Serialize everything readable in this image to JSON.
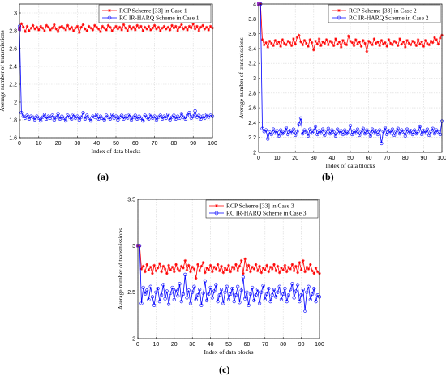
{
  "panels": [
    {
      "id": "a",
      "label": "(a)",
      "chart_data": {
        "type": "line",
        "xlabel": "Index of data blocks",
        "ylabel": "Average number of transmissions",
        "xlim": [
          0,
          100
        ],
        "ylim": [
          1.6,
          3.1
        ],
        "xticks": [
          0,
          10,
          20,
          30,
          40,
          50,
          60,
          70,
          80,
          90,
          100
        ],
        "yticks": [
          1.6,
          1.8,
          2,
          2.2,
          2.4,
          2.6,
          2.8,
          3
        ],
        "grid": true,
        "legend_position": "top-right",
        "series": [
          {
            "name": "RCP Scheme [33] in Case 1",
            "color": "#ff0000",
            "marker": "asterisk",
            "values": [
              2.82,
              2.88,
              2.84,
              2.79,
              2.85,
              2.8,
              2.83,
              2.86,
              2.82,
              2.84,
              2.81,
              2.85,
              2.83,
              2.8,
              2.86,
              2.84,
              2.81,
              2.83,
              2.87,
              2.82,
              2.79,
              2.84,
              2.85,
              2.83,
              2.81,
              2.86,
              2.82,
              2.84,
              2.8,
              2.83,
              2.85,
              2.78,
              2.84,
              2.87,
              2.82,
              2.8,
              2.85,
              2.83,
              2.81,
              2.86,
              2.84,
              2.82,
              2.79,
              2.85,
              2.83,
              2.81,
              2.86,
              2.84,
              2.8,
              2.83,
              2.85,
              2.82,
              2.84,
              2.81,
              2.87,
              2.83,
              2.8,
              2.85,
              2.82,
              2.84,
              2.81,
              2.86,
              2.83,
              2.85,
              2.8,
              2.84,
              2.82,
              2.85,
              2.81,
              2.83,
              2.86,
              2.82,
              2.84,
              2.8,
              2.83,
              2.85,
              2.82,
              2.84,
              2.81,
              2.86,
              2.83,
              2.85,
              2.8,
              2.84,
              2.87,
              2.82,
              2.84,
              2.81,
              2.85,
              2.83,
              2.88,
              2.82,
              2.85,
              2.8,
              2.84,
              2.86,
              2.82,
              2.84,
              2.81,
              2.85,
              2.83
            ]
          },
          {
            "name": "RC IR-HARQ Scheme in Case 1",
            "color": "#0000ff",
            "marker": "circle",
            "values": [
              2.85,
              1.88,
              1.84,
              1.82,
              1.85,
              1.81,
              1.84,
              1.83,
              1.8,
              1.84,
              1.82,
              1.79,
              1.83,
              1.86,
              1.81,
              1.84,
              1.82,
              1.85,
              1.8,
              1.83,
              1.87,
              1.81,
              1.84,
              1.82,
              1.79,
              1.85,
              1.83,
              1.81,
              1.86,
              1.82,
              1.84,
              1.8,
              1.83,
              1.88,
              1.81,
              1.85,
              1.82,
              1.79,
              1.84,
              1.83,
              1.86,
              1.81,
              1.84,
              1.82,
              1.8,
              1.85,
              1.83,
              1.81,
              1.86,
              1.82,
              1.84,
              1.8,
              1.83,
              1.85,
              1.81,
              1.84,
              1.82,
              1.86,
              1.8,
              1.83,
              1.85,
              1.81,
              1.84,
              1.82,
              1.79,
              1.85,
              1.83,
              1.81,
              1.86,
              1.82,
              1.84,
              1.8,
              1.83,
              1.85,
              1.81,
              1.84,
              1.82,
              1.86,
              1.8,
              1.83,
              1.85,
              1.81,
              1.84,
              1.82,
              1.87,
              1.83,
              1.81,
              1.85,
              1.88,
              1.82,
              1.84,
              1.9,
              1.83,
              1.85,
              1.81,
              1.84,
              1.82,
              1.86,
              1.83,
              1.85,
              1.84
            ]
          }
        ]
      }
    },
    {
      "id": "b",
      "label": "(b)",
      "chart_data": {
        "type": "line",
        "xlabel": "Index of data blocks",
        "ylabel": "Average number of transmissions",
        "xlim": [
          0,
          100
        ],
        "ylim": [
          2.0,
          4.0
        ],
        "xticks": [
          0,
          10,
          20,
          30,
          40,
          50,
          60,
          70,
          80,
          90,
          100
        ],
        "yticks": [
          2,
          2.2,
          2.4,
          2.6,
          2.8,
          3,
          3.2,
          3.4,
          3.6,
          3.8,
          4
        ],
        "grid": true,
        "legend_position": "top-right",
        "series": [
          {
            "name": "RCP Scheme [33] in Case 2",
            "color": "#ff0000",
            "marker": "asterisk",
            "values": [
              4.0,
              4.0,
              3.52,
              3.45,
              3.48,
              3.42,
              3.5,
              3.47,
              3.44,
              3.51,
              3.46,
              3.49,
              3.43,
              3.52,
              3.47,
              3.45,
              3.5,
              3.48,
              3.44,
              3.53,
              3.46,
              3.55,
              3.58,
              3.49,
              3.45,
              3.51,
              3.47,
              3.43,
              3.52,
              3.48,
              3.38,
              3.5,
              3.46,
              3.53,
              3.44,
              3.49,
              3.47,
              3.52,
              3.45,
              3.5,
              3.48,
              3.44,
              3.53,
              3.46,
              3.49,
              3.42,
              3.51,
              3.47,
              3.45,
              3.57,
              3.5,
              3.48,
              3.44,
              3.52,
              3.46,
              3.49,
              3.43,
              3.51,
              3.47,
              3.36,
              3.5,
              3.48,
              3.45,
              3.53,
              3.47,
              3.49,
              3.44,
              3.51,
              3.46,
              3.48,
              3.43,
              3.52,
              3.47,
              3.45,
              3.5,
              3.48,
              3.44,
              3.53,
              3.46,
              3.49,
              3.42,
              3.51,
              3.47,
              3.45,
              3.5,
              3.48,
              3.44,
              3.52,
              3.46,
              3.49,
              3.43,
              3.51,
              3.47,
              3.45,
              3.5,
              3.48,
              3.55,
              3.52,
              3.46,
              3.54,
              3.58
            ]
          },
          {
            "name": "RC IR-HARQ Scheme in Case 2",
            "color": "#0000ff",
            "marker": "circle",
            "values": [
              4.0,
              4.0,
              2.32,
              2.28,
              2.3,
              2.18,
              2.27,
              2.24,
              2.31,
              2.26,
              2.29,
              2.22,
              2.3,
              2.25,
              2.28,
              2.33,
              2.24,
              2.29,
              2.26,
              2.31,
              2.23,
              2.28,
              2.38,
              2.46,
              2.25,
              2.3,
              2.27,
              2.22,
              2.31,
              2.26,
              2.29,
              2.35,
              2.24,
              2.29,
              2.26,
              2.31,
              2.23,
              2.28,
              2.32,
              2.25,
              2.3,
              2.27,
              2.22,
              2.31,
              2.26,
              2.29,
              2.24,
              2.3,
              2.25,
              2.28,
              2.36,
              2.24,
              2.29,
              2.26,
              2.31,
              2.23,
              2.28,
              2.32,
              2.25,
              2.3,
              2.27,
              2.22,
              2.31,
              2.26,
              2.29,
              2.24,
              2.3,
              2.12,
              2.28,
              2.33,
              2.24,
              2.29,
              2.26,
              2.31,
              2.23,
              2.28,
              2.32,
              2.25,
              2.3,
              2.27,
              2.22,
              2.31,
              2.26,
              2.29,
              2.24,
              2.3,
              2.25,
              2.28,
              2.35,
              2.24,
              2.29,
              2.26,
              2.31,
              2.23,
              2.28,
              2.32,
              2.25,
              2.3,
              2.27,
              2.24,
              2.42
            ]
          }
        ]
      }
    },
    {
      "id": "c",
      "label": "(c)",
      "chart_data": {
        "type": "line",
        "xlabel": "Index of data blocks",
        "ylabel": "Average number of transmissions",
        "xlim": [
          0,
          100
        ],
        "ylim": [
          2.0,
          3.5
        ],
        "xticks": [
          0,
          10,
          20,
          30,
          40,
          50,
          60,
          70,
          80,
          90,
          100
        ],
        "yticks": [
          2,
          2.5,
          3,
          3.5
        ],
        "grid": true,
        "legend_position": "top-right",
        "series": [
          {
            "name": "RCP Scheme [33] in Case 3",
            "color": "#ff0000",
            "marker": "asterisk",
            "values": [
              3.0,
              3.0,
              2.75,
              2.78,
              2.72,
              2.8,
              2.74,
              2.77,
              2.7,
              2.79,
              2.73,
              2.76,
              2.81,
              2.72,
              2.78,
              2.75,
              2.7,
              2.79,
              2.74,
              2.77,
              2.72,
              2.8,
              2.75,
              2.73,
              2.78,
              2.76,
              2.84,
              2.74,
              2.79,
              2.72,
              2.77,
              2.75,
              2.65,
              2.8,
              2.73,
              2.78,
              2.82,
              2.71,
              2.76,
              2.74,
              2.79,
              2.72,
              2.77,
              2.75,
              2.8,
              2.73,
              2.78,
              2.71,
              2.76,
              2.74,
              2.79,
              2.72,
              2.77,
              2.75,
              2.8,
              2.73,
              2.78,
              2.84,
              2.7,
              2.86,
              2.74,
              2.79,
              2.72,
              2.77,
              2.75,
              2.8,
              2.73,
              2.78,
              2.71,
              2.76,
              2.74,
              2.79,
              2.72,
              2.77,
              2.75,
              2.8,
              2.73,
              2.78,
              2.71,
              2.76,
              2.74,
              2.79,
              2.72,
              2.77,
              2.75,
              2.8,
              2.73,
              2.78,
              2.71,
              2.82,
              2.74,
              2.84,
              2.72,
              2.77,
              2.75,
              2.8,
              2.73,
              2.7,
              2.76,
              2.72,
              2.7
            ]
          },
          {
            "name": "RC IR-HARQ Scheme in Case 3",
            "color": "#0000ff",
            "marker": "circle",
            "values": [
              3.0,
              3.0,
              2.38,
              2.55,
              2.48,
              2.52,
              2.42,
              2.56,
              2.45,
              2.36,
              2.5,
              2.54,
              2.4,
              2.47,
              2.58,
              2.43,
              2.51,
              2.37,
              2.49,
              2.55,
              2.42,
              2.53,
              2.46,
              2.59,
              2.4,
              2.48,
              2.69,
              2.44,
              2.52,
              2.38,
              2.5,
              2.56,
              2.42,
              2.47,
              2.53,
              2.36,
              2.49,
              2.62,
              2.41,
              2.48,
              2.55,
              2.44,
              2.51,
              2.58,
              2.4,
              2.47,
              2.53,
              2.38,
              2.5,
              2.56,
              2.42,
              2.48,
              2.54,
              2.4,
              2.47,
              2.56,
              2.39,
              2.52,
              2.66,
              2.43,
              2.5,
              2.36,
              2.48,
              2.55,
              2.41,
              2.47,
              2.53,
              2.38,
              2.5,
              2.57,
              2.42,
              2.48,
              2.54,
              2.4,
              2.47,
              2.53,
              2.45,
              2.5,
              2.56,
              2.42,
              2.48,
              2.54,
              2.4,
              2.47,
              2.53,
              2.59,
              2.44,
              2.51,
              2.58,
              2.4,
              2.47,
              2.53,
              2.3,
              2.5,
              2.56,
              2.42,
              2.48,
              2.54,
              2.4,
              2.47,
              2.45
            ]
          }
        ]
      }
    }
  ]
}
